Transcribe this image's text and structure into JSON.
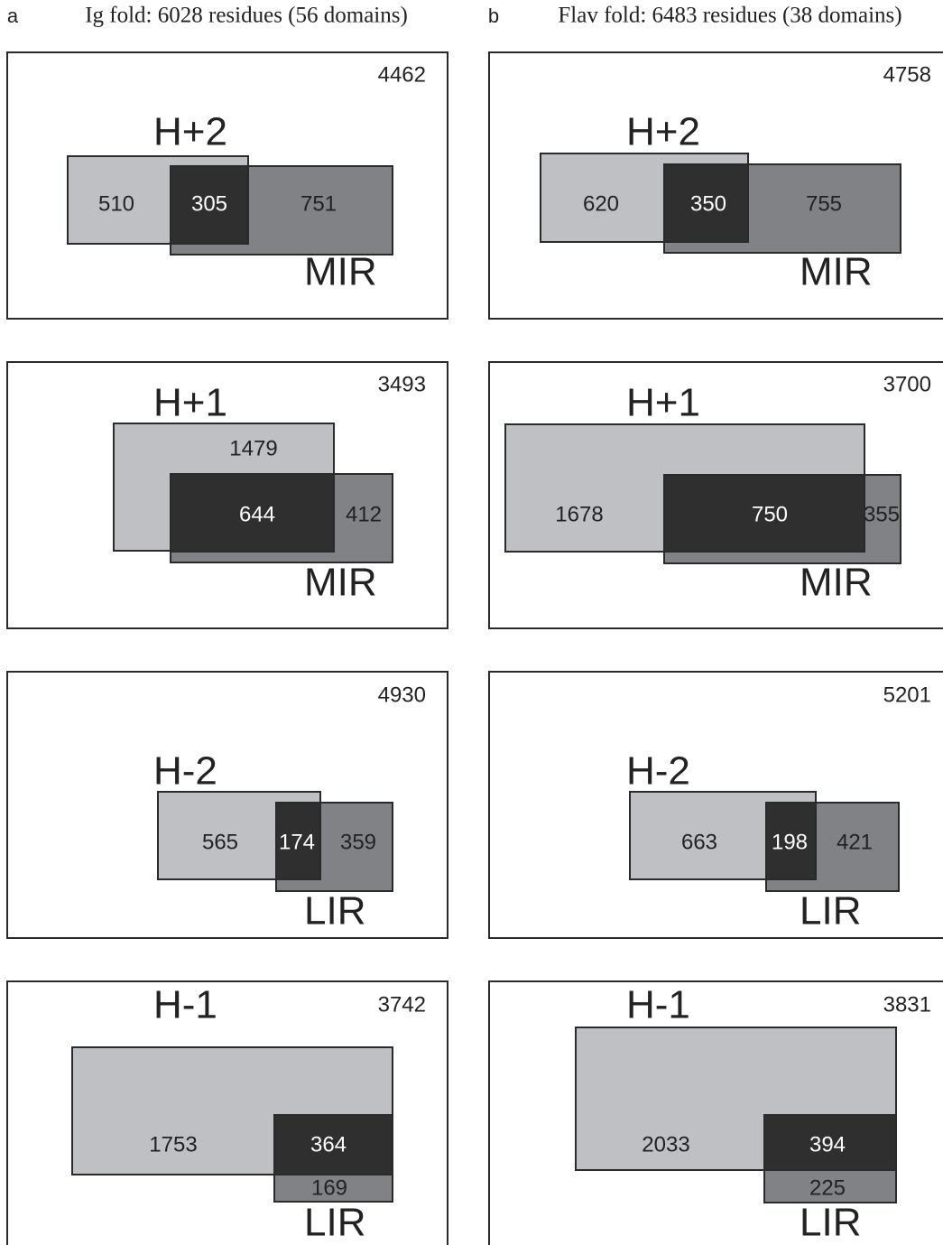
{
  "columns": [
    {
      "letter": "a",
      "title": "Ig fold: 6028 residues (56 domains)",
      "panels": [
        {
          "total": "4462",
          "top_set": "H+2",
          "bottom_set": "MIR",
          "top_only": "510",
          "overlap": "305",
          "bottom_only": "751"
        },
        {
          "total": "3493",
          "top_set": "H+1",
          "bottom_set": "MIR",
          "top_only": "1479",
          "overlap": "644",
          "bottom_only": "412"
        },
        {
          "total": "4930",
          "top_set": "H-2",
          "bottom_set": "LIR",
          "top_only": "565",
          "overlap": "174",
          "bottom_only": "359"
        },
        {
          "total": "3742",
          "top_set": "H-1",
          "bottom_set": "LIR",
          "top_only": "1753",
          "overlap": "364",
          "bottom_only": "169"
        }
      ]
    },
    {
      "letter": "b",
      "title": "Flav fold: 6483 residues (38 domains)",
      "panels": [
        {
          "total": "4758",
          "top_set": "H+2",
          "bottom_set": "MIR",
          "top_only": "620",
          "overlap": "350",
          "bottom_only": "755"
        },
        {
          "total": "3700",
          "top_set": "H+1",
          "bottom_set": "MIR",
          "top_only": "1678",
          "overlap": "750",
          "bottom_only": "355"
        },
        {
          "total": "5201",
          "top_set": "H-2",
          "bottom_set": "LIR",
          "top_only": "663",
          "overlap": "198",
          "bottom_only": "421"
        },
        {
          "total": "3831",
          "top_set": "H-1",
          "bottom_set": "LIR",
          "top_only": "2033",
          "overlap": "394",
          "bottom_only": "225"
        }
      ]
    }
  ],
  "colors": {
    "top_set_fill": "#bfc0c3",
    "bottom_set_fill": "#818285",
    "overlap_fill": "#2f2f30",
    "border": "#2a2a2a",
    "text_dark": "#222222",
    "text_light": "#ffffff"
  }
}
